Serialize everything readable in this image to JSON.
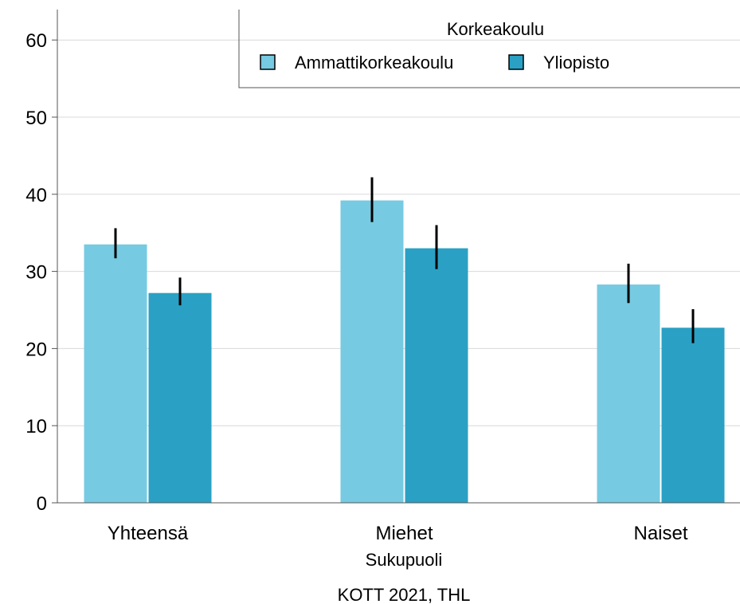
{
  "chart_data": {
    "type": "bar",
    "categories": [
      "Yhteensä",
      "Miehet",
      "Naiset"
    ],
    "xlabel": "Sukupuoli",
    "caption": "KOTT 2021, THL",
    "ylim": [
      0,
      62
    ],
    "yticks": [
      0,
      10,
      20,
      30,
      40,
      50,
      60
    ],
    "grid": true,
    "legend": {
      "title": "Korkeakoulu",
      "placement": "top-right"
    },
    "series": [
      {
        "name": "Ammattikorkeakoulu",
        "color": "#76CAE1",
        "values": [
          33.5,
          39.2,
          28.3
        ],
        "ci_low": [
          31.7,
          36.4,
          25.9
        ],
        "ci_high": [
          35.6,
          42.2,
          31.0
        ]
      },
      {
        "name": "Yliopisto",
        "color": "#2AA1C4",
        "values": [
          27.2,
          33.0,
          22.7
        ],
        "ci_low": [
          25.6,
          30.3,
          20.7
        ],
        "ci_high": [
          29.2,
          36.0,
          25.1
        ]
      }
    ]
  }
}
